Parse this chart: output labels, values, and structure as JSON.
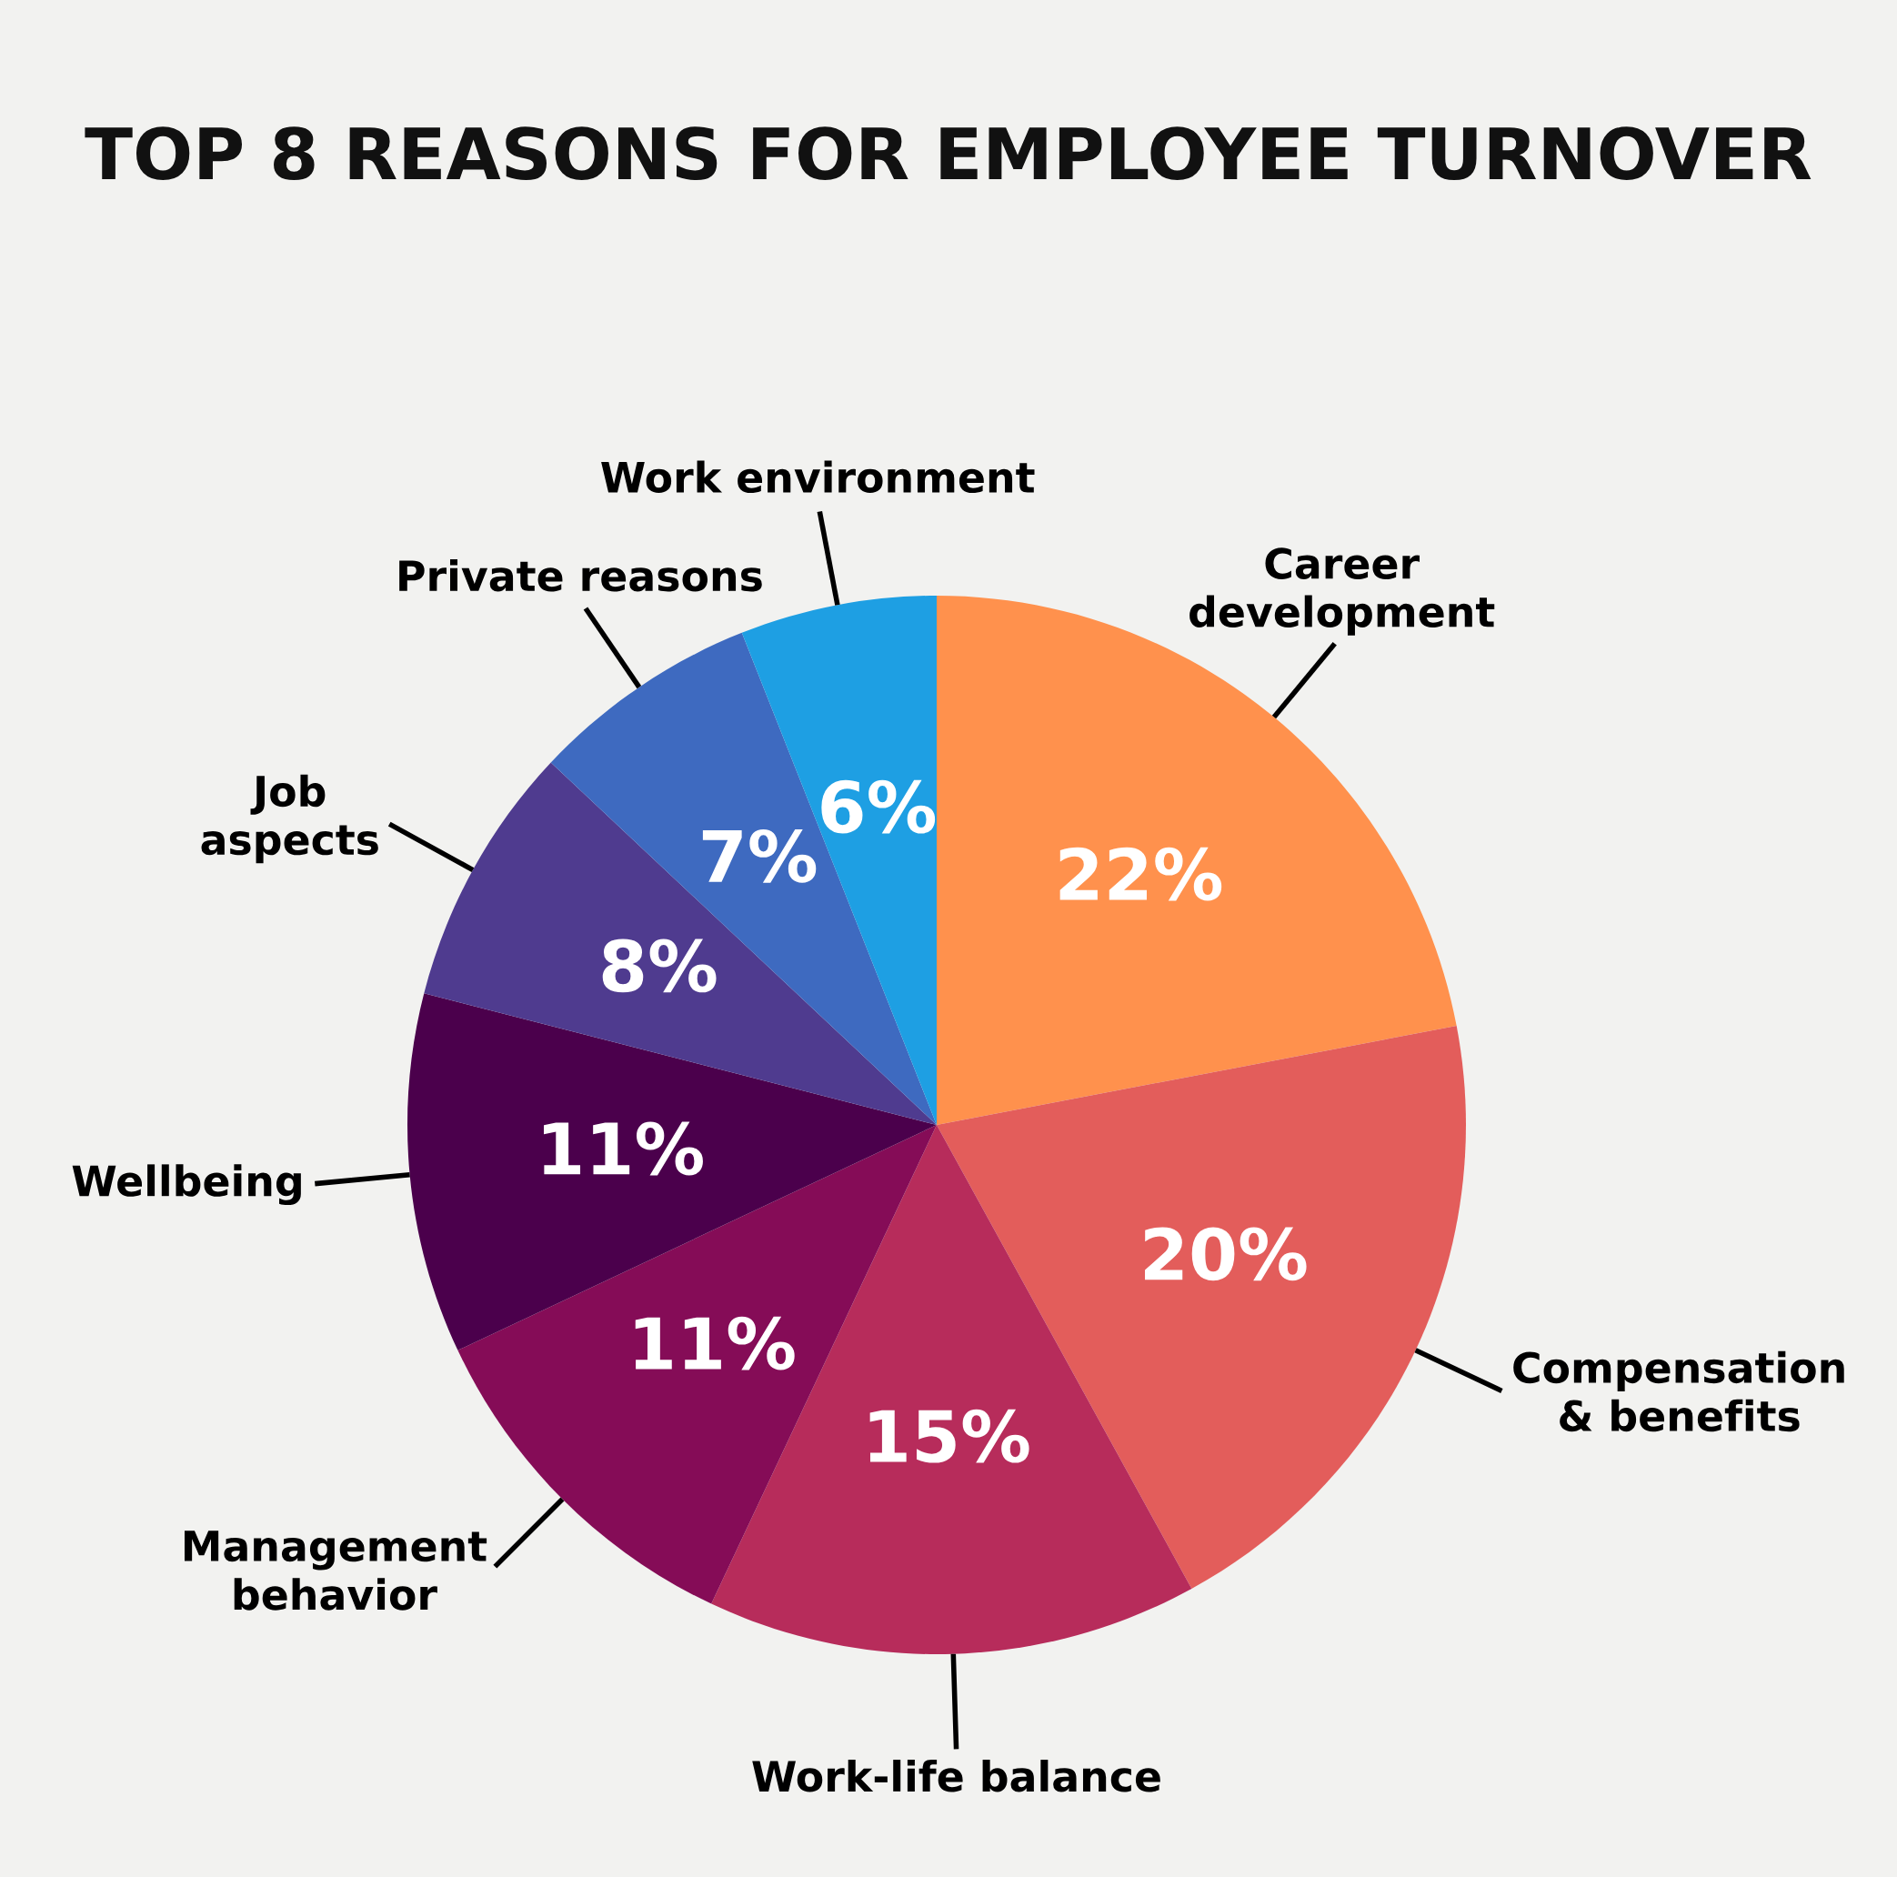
{
  "chart_data": {
    "type": "pie",
    "title": "TOP 8 REASONS FOR EMPLOYEE TURNOVER",
    "categories": [
      "Career\ndevelopment",
      "Compensation\n& benefits",
      "Work-life balance",
      "Management\nbehavior",
      "Wellbeing",
      "Job\naspects",
      "Private reasons",
      "Work environment"
    ],
    "values": [
      22,
      20,
      15,
      11,
      11,
      8,
      7,
      6
    ],
    "value_labels": [
      "22%",
      "20%",
      "15%",
      "11%",
      "11%",
      "8%",
      "7%",
      "6%"
    ],
    "colors": [
      "#ff914d",
      "#e35d5b",
      "#b72c5b",
      "#850c57",
      "#4b004c",
      "#4f3b8f",
      "#3e6ac0",
      "#1e9fe3"
    ],
    "legend": false
  }
}
